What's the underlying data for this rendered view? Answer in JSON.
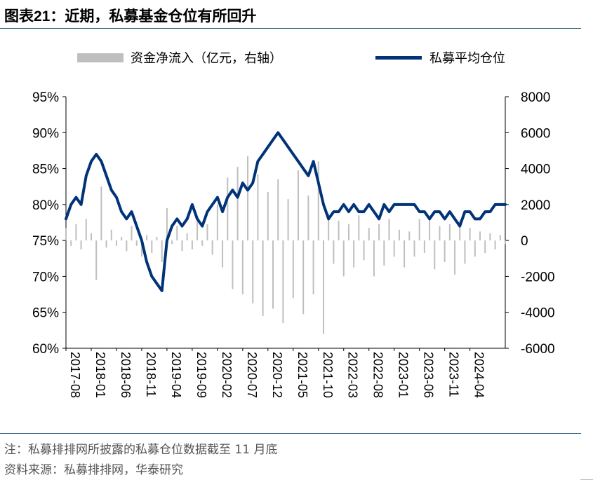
{
  "header": {
    "figure_label": "图表",
    "figure_number": "21",
    "separator": "：",
    "title": "近期，私募基金仓位有所回升"
  },
  "footer": {
    "note": "注：私募排排网所披露的私募仓位数据截至 11 月底",
    "source": "资料来源：私募排排网，华泰研究"
  },
  "chart_data": {
    "type": "line+bar",
    "title": "近期，私募基金仓位有所回升",
    "legend": [
      {
        "label": "资金净流入（亿元，右轴）",
        "color": "#bfbfbf",
        "kind": "bar"
      },
      {
        "label": "私募平均仓位",
        "color": "#003378",
        "kind": "line"
      }
    ],
    "left_axis": {
      "min": 60,
      "max": 95,
      "ticks": [
        "95%",
        "90%",
        "85%",
        "80%",
        "75%",
        "70%",
        "65%",
        "60%"
      ]
    },
    "right_axis": {
      "min": -6000,
      "max": 8000,
      "ticks": [
        "8000",
        "6000",
        "4000",
        "2000",
        "0",
        "-2000",
        "-4000",
        "-6000"
      ]
    },
    "x_labels": [
      "2017-08",
      "2018-01",
      "2018-06",
      "2018-11",
      "2019-04",
      "2019-09",
      "2020-02",
      "2020-07",
      "2020-12",
      "2021-05",
      "2021-10",
      "2022-03",
      "2022-08",
      "2023-01",
      "2023-06",
      "2023-11",
      "2024-04"
    ],
    "x_range_months": [
      0,
      87
    ],
    "position_series": [
      [
        0,
        78
      ],
      [
        1,
        80
      ],
      [
        2,
        81
      ],
      [
        3,
        80
      ],
      [
        4,
        84
      ],
      [
        5,
        86
      ],
      [
        6,
        87
      ],
      [
        7,
        86
      ],
      [
        8,
        84
      ],
      [
        9,
        82
      ],
      [
        10,
        81
      ],
      [
        11,
        79
      ],
      [
        12,
        78
      ],
      [
        13,
        79
      ],
      [
        14,
        77
      ],
      [
        15,
        75
      ],
      [
        16,
        72
      ],
      [
        17,
        70
      ],
      [
        18,
        69
      ],
      [
        19,
        68
      ],
      [
        20,
        75
      ],
      [
        21,
        77
      ],
      [
        22,
        78
      ],
      [
        23,
        77
      ],
      [
        24,
        78
      ],
      [
        25,
        80
      ],
      [
        26,
        78
      ],
      [
        27,
        77
      ],
      [
        28,
        79
      ],
      [
        29,
        80
      ],
      [
        30,
        81
      ],
      [
        31,
        79
      ],
      [
        32,
        81
      ],
      [
        33,
        82
      ],
      [
        34,
        81
      ],
      [
        35,
        83
      ],
      [
        36,
        82
      ],
      [
        37,
        83
      ],
      [
        38,
        86
      ],
      [
        39,
        87
      ],
      [
        40,
        88
      ],
      [
        41,
        89
      ],
      [
        42,
        90
      ],
      [
        43,
        89
      ],
      [
        44,
        88
      ],
      [
        45,
        87
      ],
      [
        46,
        86
      ],
      [
        47,
        85
      ],
      [
        48,
        84
      ],
      [
        49,
        86
      ],
      [
        50,
        83
      ],
      [
        51,
        80
      ],
      [
        52,
        78
      ],
      [
        53,
        79
      ],
      [
        54,
        79
      ],
      [
        55,
        80
      ],
      [
        56,
        79
      ],
      [
        57,
        80
      ],
      [
        58,
        79
      ],
      [
        59,
        79
      ],
      [
        60,
        80
      ],
      [
        61,
        79
      ],
      [
        62,
        78
      ],
      [
        63,
        80
      ],
      [
        64,
        79
      ],
      [
        65,
        80
      ],
      [
        66,
        80
      ],
      [
        67,
        80
      ],
      [
        68,
        80
      ],
      [
        69,
        80
      ],
      [
        70,
        79
      ],
      [
        71,
        79
      ],
      [
        72,
        78
      ],
      [
        73,
        79
      ],
      [
        74,
        79
      ],
      [
        75,
        78
      ],
      [
        76,
        79
      ],
      [
        77,
        78
      ],
      [
        78,
        77
      ],
      [
        79,
        79
      ],
      [
        80,
        79
      ],
      [
        81,
        78
      ],
      [
        82,
        78
      ],
      [
        83,
        79
      ],
      [
        84,
        79
      ],
      [
        85,
        80
      ],
      [
        86,
        80
      ],
      [
        87,
        80
      ]
    ],
    "flow_series": [
      [
        0,
        700
      ],
      [
        1,
        -300
      ],
      [
        2,
        900
      ],
      [
        3,
        -500
      ],
      [
        4,
        1200
      ],
      [
        5,
        400
      ],
      [
        6,
        -2200
      ],
      [
        7,
        3000
      ],
      [
        8,
        -400
      ],
      [
        9,
        600
      ],
      [
        10,
        -300
      ],
      [
        11,
        200
      ],
      [
        12,
        -600
      ],
      [
        13,
        800
      ],
      [
        14,
        -300
      ],
      [
        15,
        -900
      ],
      [
        16,
        300
      ],
      [
        17,
        -700
      ],
      [
        18,
        200
      ],
      [
        19,
        -1200
      ],
      [
        20,
        1800
      ],
      [
        21,
        -200
      ],
      [
        22,
        800
      ],
      [
        23,
        -600
      ],
      [
        24,
        400
      ],
      [
        25,
        -500
      ],
      [
        26,
        1100
      ],
      [
        27,
        -300
      ],
      [
        28,
        900
      ],
      [
        29,
        -800
      ],
      [
        30,
        2000
      ],
      [
        31,
        -1500
      ],
      [
        32,
        3500
      ],
      [
        33,
        -2700
      ],
      [
        34,
        4100
      ],
      [
        35,
        -3000
      ],
      [
        36,
        4700
      ],
      [
        37,
        -3500
      ],
      [
        38,
        3700
      ],
      [
        39,
        -4200
      ],
      [
        40,
        2700
      ],
      [
        41,
        -3800
      ],
      [
        42,
        3400
      ],
      [
        43,
        -4600
      ],
      [
        44,
        2300
      ],
      [
        45,
        -3200
      ],
      [
        46,
        3900
      ],
      [
        47,
        -4100
      ],
      [
        48,
        2500
      ],
      [
        49,
        -3000
      ],
      [
        50,
        4400
      ],
      [
        51,
        -5200
      ],
      [
        52,
        1500
      ],
      [
        53,
        -1300
      ],
      [
        54,
        1100
      ],
      [
        55,
        -2000
      ],
      [
        56,
        900
      ],
      [
        57,
        -1500
      ],
      [
        58,
        1400
      ],
      [
        59,
        -1100
      ],
      [
        60,
        700
      ],
      [
        61,
        -2000
      ],
      [
        62,
        900
      ],
      [
        63,
        -1400
      ],
      [
        64,
        1200
      ],
      [
        65,
        -900
      ],
      [
        66,
        600
      ],
      [
        67,
        -1500
      ],
      [
        68,
        500
      ],
      [
        69,
        -900
      ],
      [
        70,
        1200
      ],
      [
        71,
        -700
      ],
      [
        72,
        1300
      ],
      [
        73,
        -1600
      ],
      [
        74,
        800
      ],
      [
        75,
        -1200
      ],
      [
        76,
        900
      ],
      [
        77,
        -1900
      ],
      [
        78,
        1100
      ],
      [
        79,
        -1300
      ],
      [
        80,
        700
      ],
      [
        81,
        -900
      ],
      [
        82,
        500
      ],
      [
        83,
        -700
      ],
      [
        84,
        400
      ],
      [
        85,
        -500
      ],
      [
        86,
        300
      ],
      [
        87,
        -200
      ]
    ]
  }
}
